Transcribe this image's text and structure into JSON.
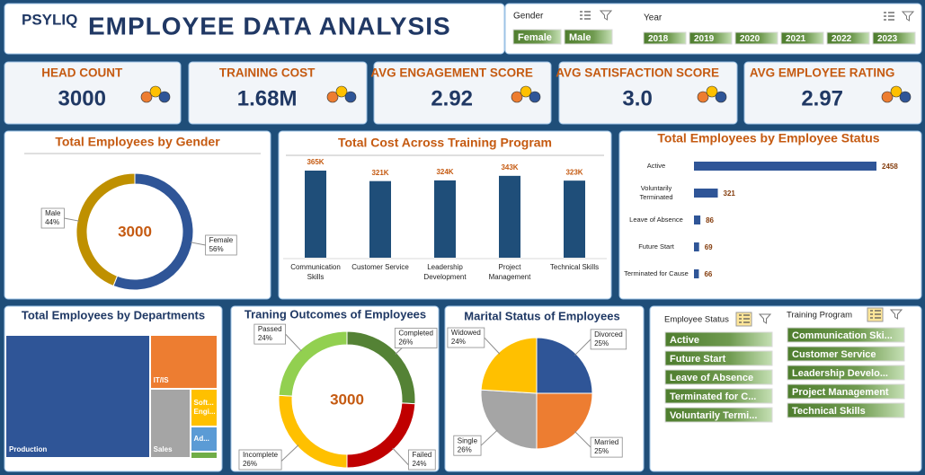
{
  "header": {
    "logo": "PSYLIQ",
    "title": "EMPLOYEE DATA ANALYSIS"
  },
  "slicers": {
    "gender": {
      "title": "Gender",
      "items": [
        "Female",
        "Male"
      ]
    },
    "year": {
      "title": "Year",
      "items": [
        "2018",
        "2019",
        "2020",
        "2021",
        "2022",
        "2023"
      ]
    },
    "employee_status": {
      "title": "Employee Status",
      "items": [
        "Active",
        "Future Start",
        "Leave of Absence",
        "Terminated for C...",
        "Voluntarily Termi..."
      ]
    },
    "training_program": {
      "title": "Training Program",
      "items": [
        "Communication Ski...",
        "Customer Service",
        "Leadership Develo...",
        "Project Management",
        "Technical Skills"
      ]
    }
  },
  "kpis": [
    {
      "label": "HEAD COUNT",
      "value": "3000"
    },
    {
      "label": "TRAINING COST",
      "value": "1.68M"
    },
    {
      "label": "AVG ENGAGEMENT SCORE",
      "value": "2.92"
    },
    {
      "label": "AVG SATISFACTION SCORE",
      "value": "3.0"
    },
    {
      "label": "AVG EMPLOYEE RATING",
      "value": "2.97"
    }
  ],
  "chart_data": [
    {
      "type": "donut",
      "title": "Total Employees by Gender",
      "categories": [
        "Female",
        "Male"
      ],
      "values": [
        56,
        44
      ],
      "value_labels": [
        "56%",
        "44%"
      ],
      "colors": [
        "#2f5597",
        "#bf9000"
      ],
      "center_label": "3000"
    },
    {
      "type": "bar",
      "title": "Total Cost Across Training Program",
      "categories": [
        "Communication Skills",
        "Customer Service",
        "Leadership Development",
        "Project Management",
        "Technical Skills"
      ],
      "values": [
        365000,
        321000,
        324000,
        343000,
        323000
      ],
      "value_labels": [
        "365K",
        "321K",
        "324K",
        "343K",
        "323K"
      ],
      "color": "#1f4e79"
    },
    {
      "type": "hbar",
      "title": "Total Employees by Employee Status",
      "categories": [
        "Active",
        "Voluntarily Terminated",
        "Leave of Absence",
        "Future Start",
        "Terminated for Cause"
      ],
      "values": [
        2458,
        321,
        86,
        69,
        66
      ],
      "color": "#2f5597"
    },
    {
      "type": "treemap",
      "title": "Total Employees by Departments",
      "categories": [
        "Production",
        "IT/IS",
        "Sales",
        "Soft... Engi...",
        "Ad...",
        null
      ],
      "values": [
        2040,
        420,
        320,
        117,
        80,
        20
      ],
      "colors": [
        "#2f5597",
        "#ed7d31",
        "#a5a5a5",
        "#ffc000",
        "#5b9bd5",
        "#70ad47"
      ]
    },
    {
      "type": "donut",
      "title": "Traning Outcomes of Employees",
      "categories": [
        "Completed",
        "Failed",
        "Incomplete",
        "Passed"
      ],
      "values": [
        26,
        24,
        26,
        24
      ],
      "value_labels": [
        "26%",
        "24%",
        "26%",
        "24%"
      ],
      "colors": [
        "#548235",
        "#c00000",
        "#ffc000",
        "#92d050"
      ],
      "center_label": "3000"
    },
    {
      "type": "pie",
      "title": "Marital Status of Employees",
      "categories": [
        "Divorced",
        "Married",
        "Single",
        "Widowed"
      ],
      "values": [
        25,
        25,
        26,
        24
      ],
      "value_labels": [
        "25%",
        "25%",
        "26%",
        "24%"
      ],
      "colors": [
        "#2f5597",
        "#ed7d31",
        "#a5a5a5",
        "#ffc000"
      ]
    }
  ]
}
